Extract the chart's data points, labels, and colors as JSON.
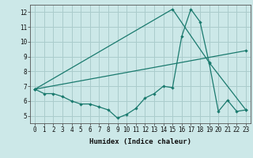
{
  "title": "",
  "xlabel": "Humidex (Indice chaleur)",
  "ylabel": "",
  "bg_color": "#cce8e8",
  "grid_color": "#aacccc",
  "line_color": "#1a7a6e",
  "xlim": [
    -0.5,
    23.5
  ],
  "ylim": [
    4.5,
    12.5
  ],
  "xticks": [
    0,
    1,
    2,
    3,
    4,
    5,
    6,
    7,
    8,
    9,
    10,
    11,
    12,
    13,
    14,
    15,
    16,
    17,
    18,
    19,
    20,
    21,
    22,
    23
  ],
  "yticks": [
    5,
    6,
    7,
    8,
    9,
    10,
    11,
    12
  ],
  "line1_x": [
    0,
    1,
    2,
    3,
    4,
    5,
    6,
    7,
    8,
    9,
    10,
    11,
    12,
    13,
    14,
    15,
    16,
    17,
    18,
    19,
    20,
    21,
    22,
    23
  ],
  "line1_y": [
    6.8,
    6.5,
    6.5,
    6.3,
    6.0,
    5.8,
    5.8,
    5.6,
    5.4,
    4.85,
    5.1,
    5.5,
    6.2,
    6.5,
    7.0,
    6.9,
    10.35,
    12.2,
    11.35,
    8.55,
    5.3,
    6.05,
    5.3,
    5.4
  ],
  "line2_x": [
    0,
    23
  ],
  "line2_y": [
    6.8,
    9.4
  ],
  "line3_x": [
    0,
    15,
    19,
    23
  ],
  "line3_y": [
    6.8,
    12.2,
    8.6,
    5.4
  ]
}
